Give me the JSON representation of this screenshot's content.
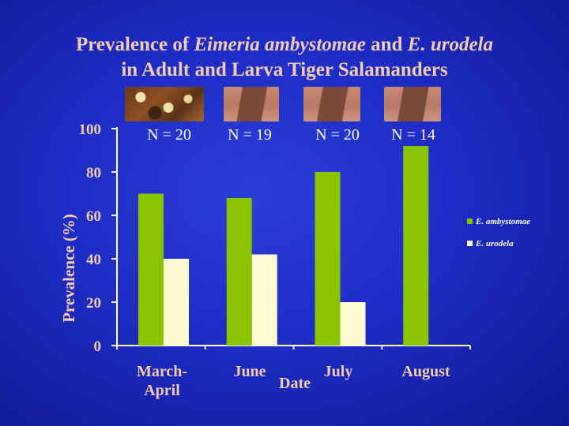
{
  "title": {
    "line1_prefix": "Prevalence of ",
    "line1_species1": "Eimeria ambystomae",
    "line1_mid": " and ",
    "line1_species2": "E. urodela",
    "line2": "in Adult and Larva Tiger Salamanders"
  },
  "photos": [
    "adult-salamander-photo",
    "larva-salamander-photo",
    "larva-salamander-photo",
    "larva-salamander-photo"
  ],
  "chart_data": {
    "type": "bar",
    "categories": [
      "March-\nApril",
      "June",
      "July",
      "August"
    ],
    "category_lines": [
      [
        "March-",
        "April"
      ],
      [
        "June"
      ],
      [
        "July"
      ],
      [
        "August"
      ]
    ],
    "series": [
      {
        "name": "E. ambystomae",
        "values": [
          70,
          68,
          80,
          92
        ],
        "color": "#8ac400"
      },
      {
        "name": "E. urodela",
        "values": [
          40,
          42,
          20,
          null
        ],
        "color": "#fdfbd2"
      }
    ],
    "sample_sizes": [
      "N = 20",
      "N = 19",
      "N = 20",
      "N = 14"
    ],
    "xlabel": "Date",
    "ylabel": "Prevalence (%)",
    "ylim": [
      0,
      100
    ],
    "yticks": [
      "0",
      "20",
      "40",
      "60",
      "80",
      "100"
    ],
    "legend_position": "right",
    "grid": false
  },
  "colors": {
    "background": "#1d2cc4",
    "title": "#f2ccb0",
    "axis": "#ffffff",
    "tick_label": "#f2ccb0"
  }
}
